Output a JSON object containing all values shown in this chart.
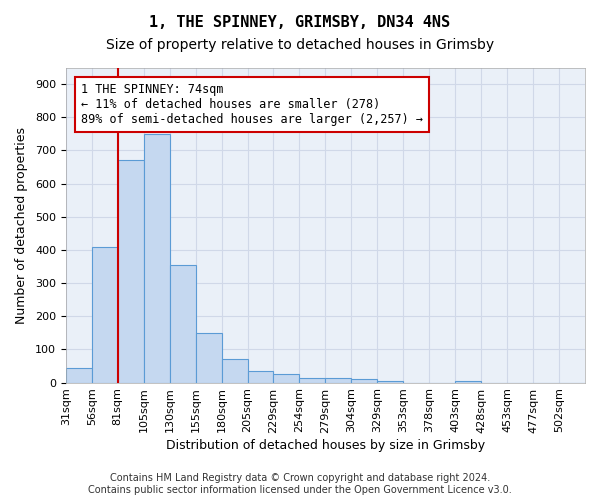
{
  "title1": "1, THE SPINNEY, GRIMSBY, DN34 4NS",
  "title2": "Size of property relative to detached houses in Grimsby",
  "xlabel": "Distribution of detached houses by size in Grimsby",
  "ylabel": "Number of detached properties",
  "footnote": "Contains HM Land Registry data © Crown copyright and database right 2024.\nContains public sector information licensed under the Open Government Licence v3.0.",
  "bin_labels": [
    "31sqm",
    "56sqm",
    "81sqm",
    "105sqm",
    "130sqm",
    "155sqm",
    "180sqm",
    "205sqm",
    "229sqm",
    "254sqm",
    "279sqm",
    "304sqm",
    "329sqm",
    "353sqm",
    "378sqm",
    "403sqm",
    "428sqm",
    "453sqm",
    "477sqm",
    "502sqm"
  ],
  "bar_values": [
    45,
    410,
    670,
    750,
    355,
    150,
    70,
    35,
    25,
    15,
    15,
    10,
    5,
    0,
    0,
    5,
    0,
    0,
    0,
    0
  ],
  "bar_color": "#c5d8f0",
  "bar_edge_color": "#5b9bd5",
  "red_line_x": 1.5,
  "annotation_text": "1 THE SPINNEY: 74sqm\n← 11% of detached houses are smaller (278)\n89% of semi-detached houses are larger (2,257) →",
  "annotation_box_color": "#ffffff",
  "annotation_border_color": "#cc0000",
  "ylim": [
    0,
    950
  ],
  "yticks": [
    0,
    100,
    200,
    300,
    400,
    500,
    600,
    700,
    800,
    900
  ],
  "grid_color": "#d0d8e8",
  "bg_color": "#eaf0f8",
  "title1_fontsize": 11,
  "title2_fontsize": 10,
  "xlabel_fontsize": 9,
  "ylabel_fontsize": 9,
  "tick_fontsize": 8,
  "annotation_fontsize": 8.5
}
